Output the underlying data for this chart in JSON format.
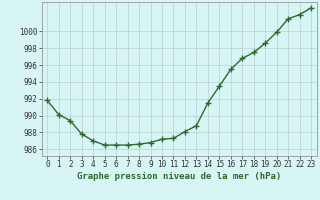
{
  "x": [
    0,
    1,
    2,
    3,
    4,
    5,
    6,
    7,
    8,
    9,
    10,
    11,
    12,
    13,
    14,
    15,
    16,
    17,
    18,
    19,
    20,
    21,
    22,
    23
  ],
  "y": [
    991.8,
    990.1,
    989.4,
    987.8,
    987.0,
    986.5,
    986.5,
    986.5,
    986.6,
    986.8,
    987.2,
    987.3,
    988.1,
    988.8,
    991.5,
    993.5,
    995.5,
    996.8,
    997.5,
    998.6,
    999.9,
    1001.5,
    1002.0,
    1002.8
  ],
  "line_color": "#2d6a2d",
  "marker": "+",
  "marker_size": 4,
  "linewidth": 1.0,
  "background_color": "#d8f5f5",
  "grid_color": "#b8d0d0",
  "ylabel_ticks": [
    986,
    988,
    990,
    992,
    994,
    996,
    998,
    1000
  ],
  "xlabel": "Graphe pression niveau de la mer (hPa)",
  "ylim": [
    985.2,
    1003.5
  ],
  "xlim": [
    -0.5,
    23.5
  ],
  "tick_fontsize": 5.5,
  "label_fontsize": 6.5
}
